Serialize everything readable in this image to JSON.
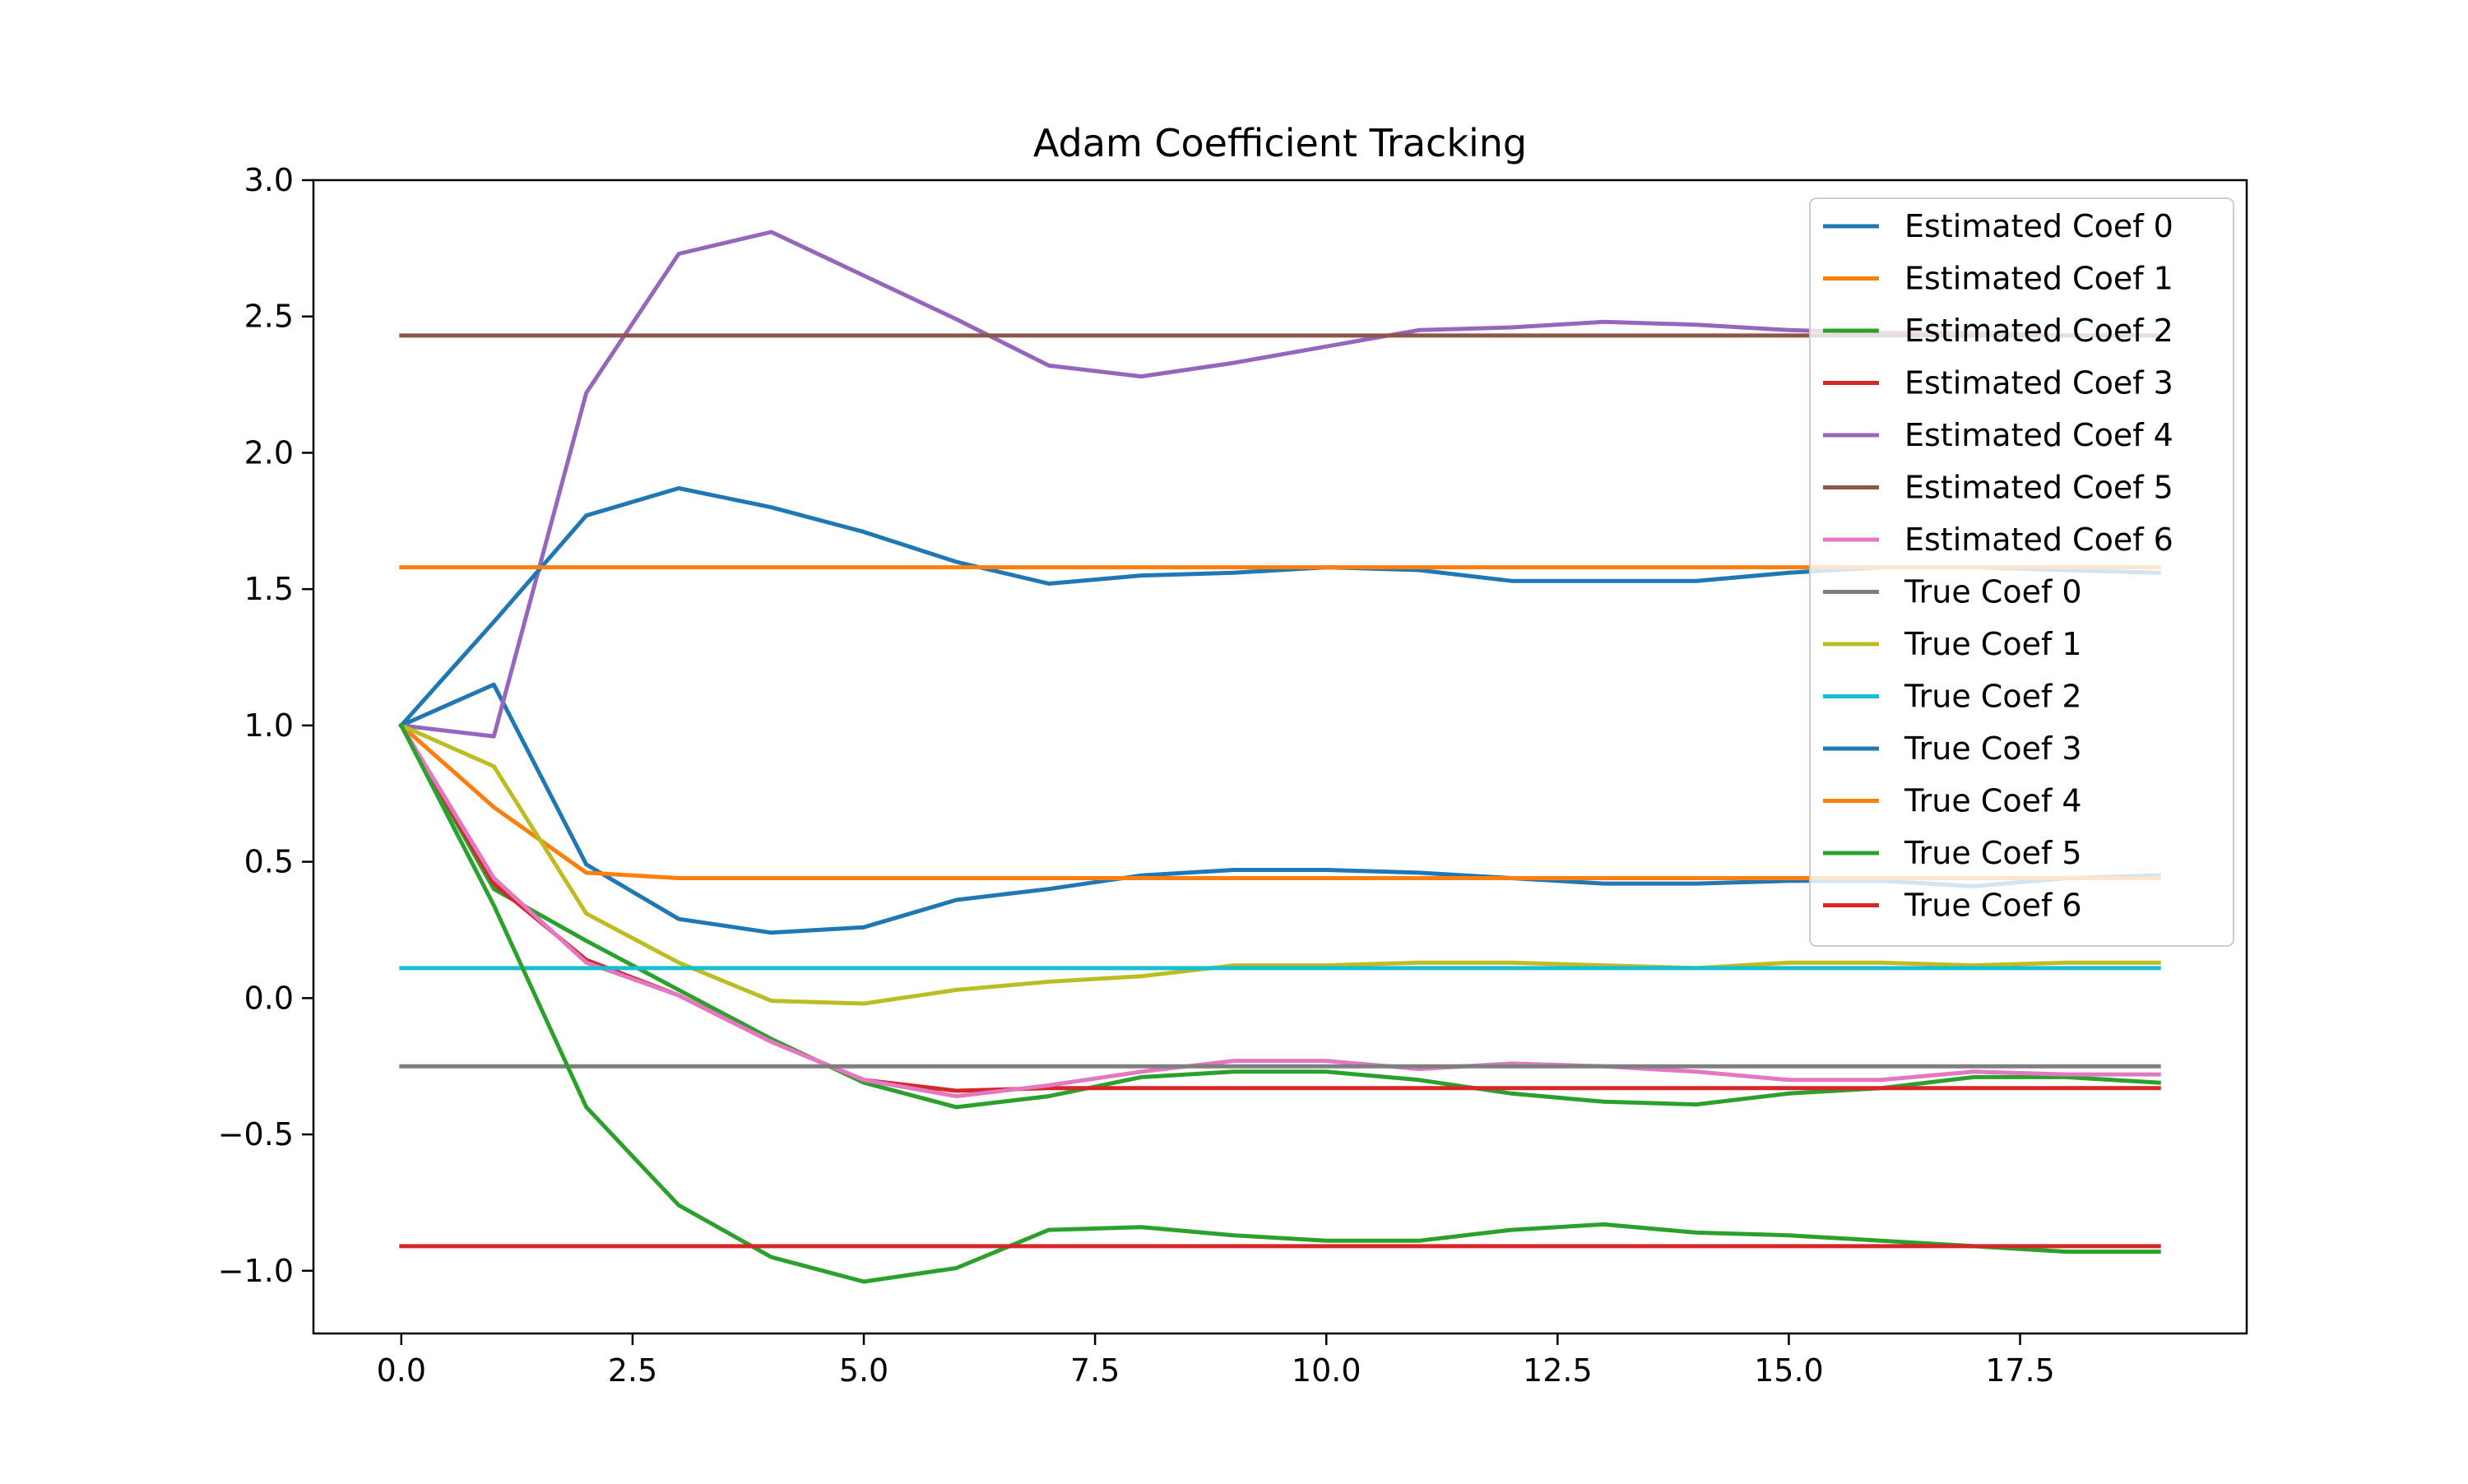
{
  "chart_data": {
    "type": "line",
    "title": "Adam Coefficient Tracking",
    "xlabel": "",
    "ylabel": "",
    "xlim": [
      -0.95,
      19.95
    ],
    "ylim": [
      -1.23,
      3.0
    ],
    "x_ticks": [
      0.0,
      2.5,
      5.0,
      7.5,
      10.0,
      12.5,
      15.0,
      17.5
    ],
    "x_tick_labels": [
      "0.0",
      "2.5",
      "5.0",
      "7.5",
      "10.0",
      "12.5",
      "15.0",
      "17.5"
    ],
    "y_ticks": [
      3.0,
      2.5,
      2.0,
      1.5,
      1.0,
      0.5,
      0.0,
      -0.5,
      -1.0
    ],
    "y_tick_labels": [
      "3.0",
      "2.5",
      "2.0",
      "1.5",
      "1.0",
      "0.5",
      "0.0",
      "−0.5",
      "−1.0"
    ],
    "grid": false,
    "legend_position": "top-right",
    "x": [
      0,
      1,
      2,
      3,
      4,
      5,
      6,
      7,
      8,
      9,
      10,
      11,
      12,
      13,
      14,
      15,
      16,
      17,
      18,
      19
    ],
    "series": [
      {
        "name": "Estimated Coef 0",
        "color": "#1f77b4",
        "values": [
          1.0,
          1.15,
          0.49,
          0.29,
          0.24,
          0.26,
          0.36,
          0.4,
          0.45,
          0.47,
          0.47,
          0.46,
          0.44,
          0.42,
          0.42,
          0.43,
          0.43,
          0.41,
          0.44,
          0.45
        ]
      },
      {
        "name": "Estimated Coef 1",
        "color": "#ff7f0e",
        "values": [
          1.0,
          0.7,
          0.46,
          0.44,
          0.44,
          0.44,
          0.44,
          0.44,
          0.44,
          0.44,
          0.44,
          0.44,
          0.44,
          0.44,
          0.44,
          0.44,
          0.44,
          0.44,
          0.44,
          0.44
        ]
      },
      {
        "name": "Estimated Coef 2",
        "color": "#2ca02c",
        "values": [
          1.0,
          0.4,
          0.21,
          0.03,
          -0.15,
          -0.31,
          -0.4,
          -0.36,
          -0.29,
          -0.27,
          -0.27,
          -0.3,
          -0.35,
          -0.38,
          -0.39,
          -0.35,
          -0.33,
          -0.29,
          -0.29,
          -0.31
        ]
      },
      {
        "name": "Estimated Coef 3",
        "color": "#d62728",
        "values": [
          1.0,
          0.42,
          0.14,
          0.01,
          -0.16,
          -0.3,
          -0.34,
          -0.33,
          -0.33,
          -0.33,
          -0.33,
          -0.33,
          -0.33,
          -0.33,
          -0.33,
          -0.33,
          -0.33,
          -0.33,
          -0.33,
          -0.33
        ]
      },
      {
        "name": "Estimated Coef 4",
        "color": "#9467bd",
        "values": [
          1.0,
          0.96,
          2.22,
          2.73,
          2.81,
          2.65,
          2.49,
          2.32,
          2.28,
          2.33,
          2.39,
          2.45,
          2.46,
          2.48,
          2.47,
          2.45,
          2.44,
          2.44,
          2.43,
          2.43
        ]
      },
      {
        "name": "Estimated Coef 5",
        "color": "#8c564b",
        "values": [
          2.43,
          2.43,
          2.43,
          2.43,
          2.43,
          2.43,
          2.43,
          2.43,
          2.43,
          2.43,
          2.43,
          2.43,
          2.43,
          2.43,
          2.43,
          2.43,
          2.43,
          2.43,
          2.43,
          2.43
        ]
      },
      {
        "name": "Estimated Coef 6",
        "color": "#e377c2",
        "values": [
          1.0,
          0.44,
          0.13,
          0.01,
          -0.16,
          -0.3,
          -0.36,
          -0.32,
          -0.27,
          -0.23,
          -0.23,
          -0.26,
          -0.24,
          -0.25,
          -0.27,
          -0.3,
          -0.3,
          -0.27,
          -0.28,
          -0.28
        ]
      },
      {
        "name": "True Coef 0",
        "color": "#7f7f7f",
        "values": [
          -0.25,
          -0.25,
          -0.25,
          -0.25,
          -0.25,
          -0.25,
          -0.25,
          -0.25,
          -0.25,
          -0.25,
          -0.25,
          -0.25,
          -0.25,
          -0.25,
          -0.25,
          -0.25,
          -0.25,
          -0.25,
          -0.25,
          -0.25
        ]
      },
      {
        "name": "True Coef 1",
        "color": "#bcbd22",
        "values": [
          1.0,
          0.85,
          0.31,
          0.13,
          -0.01,
          -0.02,
          0.03,
          0.06,
          0.08,
          0.12,
          0.12,
          0.13,
          0.13,
          0.12,
          0.11,
          0.13,
          0.13,
          0.12,
          0.13,
          0.13
        ]
      },
      {
        "name": "True Coef 2",
        "color": "#17becf",
        "values": [
          0.11,
          0.11,
          0.11,
          0.11,
          0.11,
          0.11,
          0.11,
          0.11,
          0.11,
          0.11,
          0.11,
          0.11,
          0.11,
          0.11,
          0.11,
          0.11,
          0.11,
          0.11,
          0.11,
          0.11
        ]
      },
      {
        "name": "True Coef 3",
        "color": "#1f77b4",
        "values": [
          1.0,
          1.38,
          1.77,
          1.87,
          1.8,
          1.71,
          1.6,
          1.52,
          1.55,
          1.56,
          1.58,
          1.57,
          1.53,
          1.53,
          1.53,
          1.56,
          1.58,
          1.58,
          1.57,
          1.56
        ]
      },
      {
        "name": "True Coef 4",
        "color": "#ff7f0e",
        "values": [
          1.58,
          1.58,
          1.58,
          1.58,
          1.58,
          1.58,
          1.58,
          1.58,
          1.58,
          1.58,
          1.58,
          1.58,
          1.58,
          1.58,
          1.58,
          1.58,
          1.58,
          1.58,
          1.58,
          1.58
        ]
      },
      {
        "name": "True Coef 5",
        "color": "#2ca02c",
        "values": [
          1.0,
          0.34,
          -0.4,
          -0.76,
          -0.95,
          -1.04,
          -0.99,
          -0.85,
          -0.84,
          -0.87,
          -0.89,
          -0.89,
          -0.85,
          -0.83,
          -0.86,
          -0.87,
          -0.89,
          -0.91,
          -0.93,
          -0.93
        ]
      },
      {
        "name": "True Coef 6",
        "color": "#d62728",
        "values": [
          -0.91,
          -0.91,
          -0.91,
          -0.91,
          -0.91,
          -0.91,
          -0.91,
          -0.91,
          -0.91,
          -0.91,
          -0.91,
          -0.91,
          -0.91,
          -0.91,
          -0.91,
          -0.91,
          -0.91,
          -0.91,
          -0.91,
          -0.91
        ]
      }
    ]
  }
}
